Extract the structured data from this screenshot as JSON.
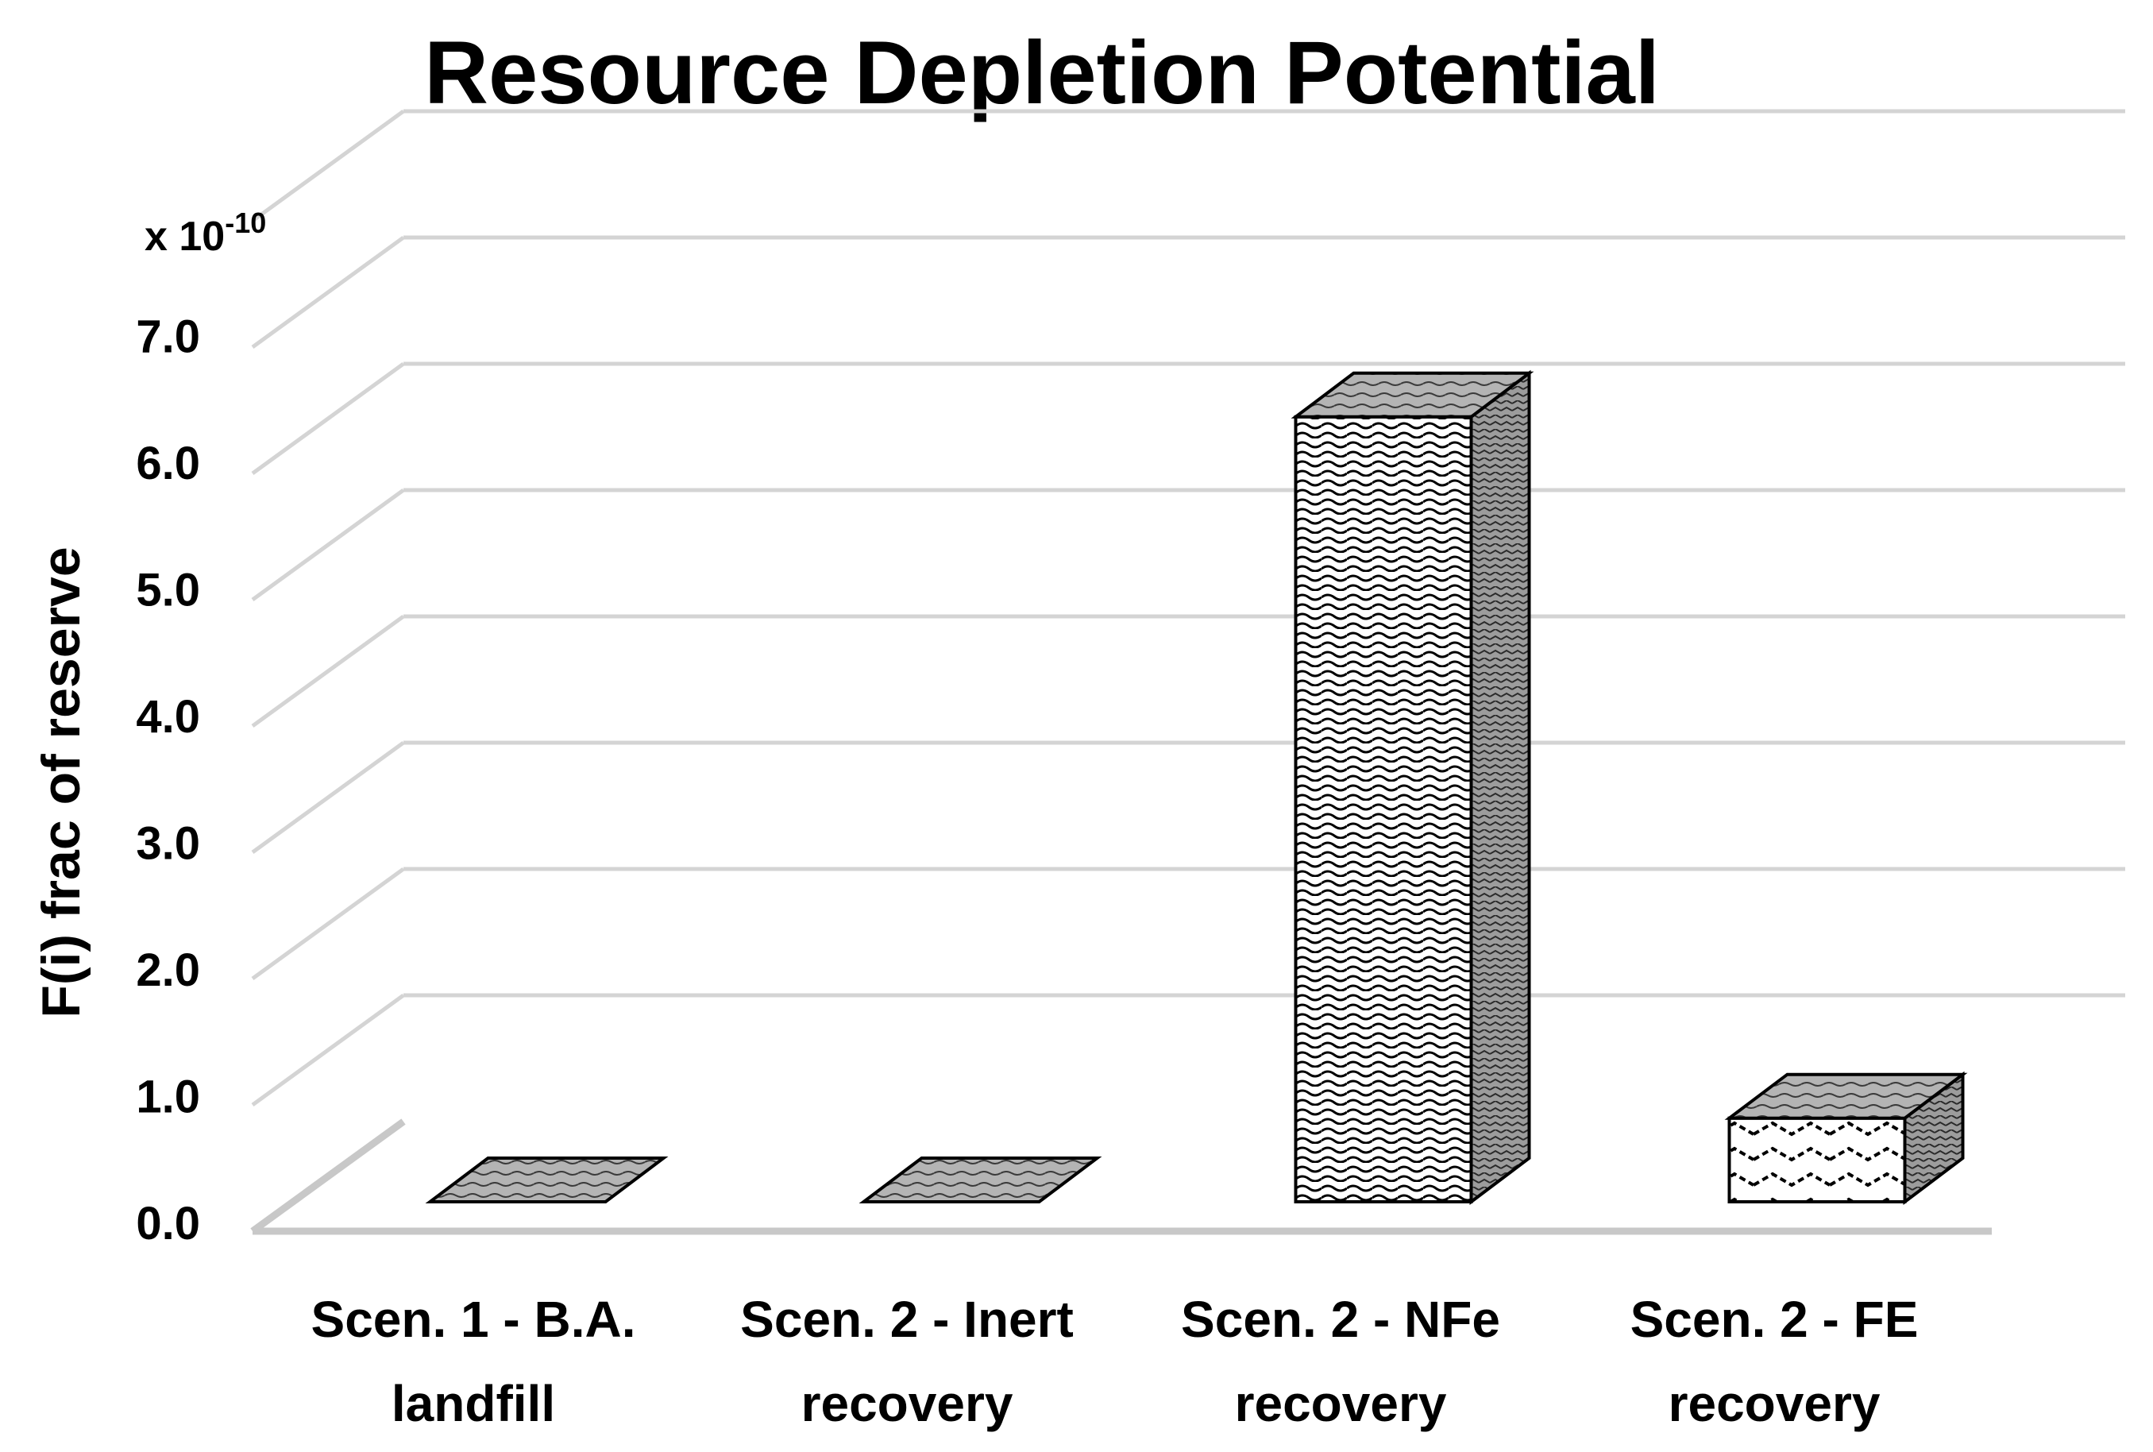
{
  "chart_data": {
    "type": "bar",
    "title": "Resource Depletion Potential",
    "ylabel": "F(i) frac of reserve",
    "xlabel": "",
    "y_multiplier": "x 10",
    "y_multiplier_exponent": "-10",
    "ylim": [
      0,
      7
    ],
    "y_ticks": [
      "0.0",
      "1.0",
      "2.0",
      "3.0",
      "4.0",
      "5.0",
      "6.0",
      "7.0"
    ],
    "grid": true,
    "legend": "none",
    "style": "3d-column",
    "categories": [
      {
        "line1": "Scen. 1 - B.A.",
        "line2": "landfill"
      },
      {
        "line1": "Scen. 2 - Inert",
        "line2": "recovery"
      },
      {
        "line1": "Scen. 2 - NFe",
        "line2": "recovery"
      },
      {
        "line1": "Scen. 2 - FE",
        "line2": "recovery"
      }
    ],
    "values": [
      0.0,
      0.0,
      6.1,
      0.65
    ],
    "colors": {
      "front": "#ffffff",
      "top": "#b0b0b0",
      "side": "#9a9a9a",
      "outline": "#000000"
    }
  }
}
